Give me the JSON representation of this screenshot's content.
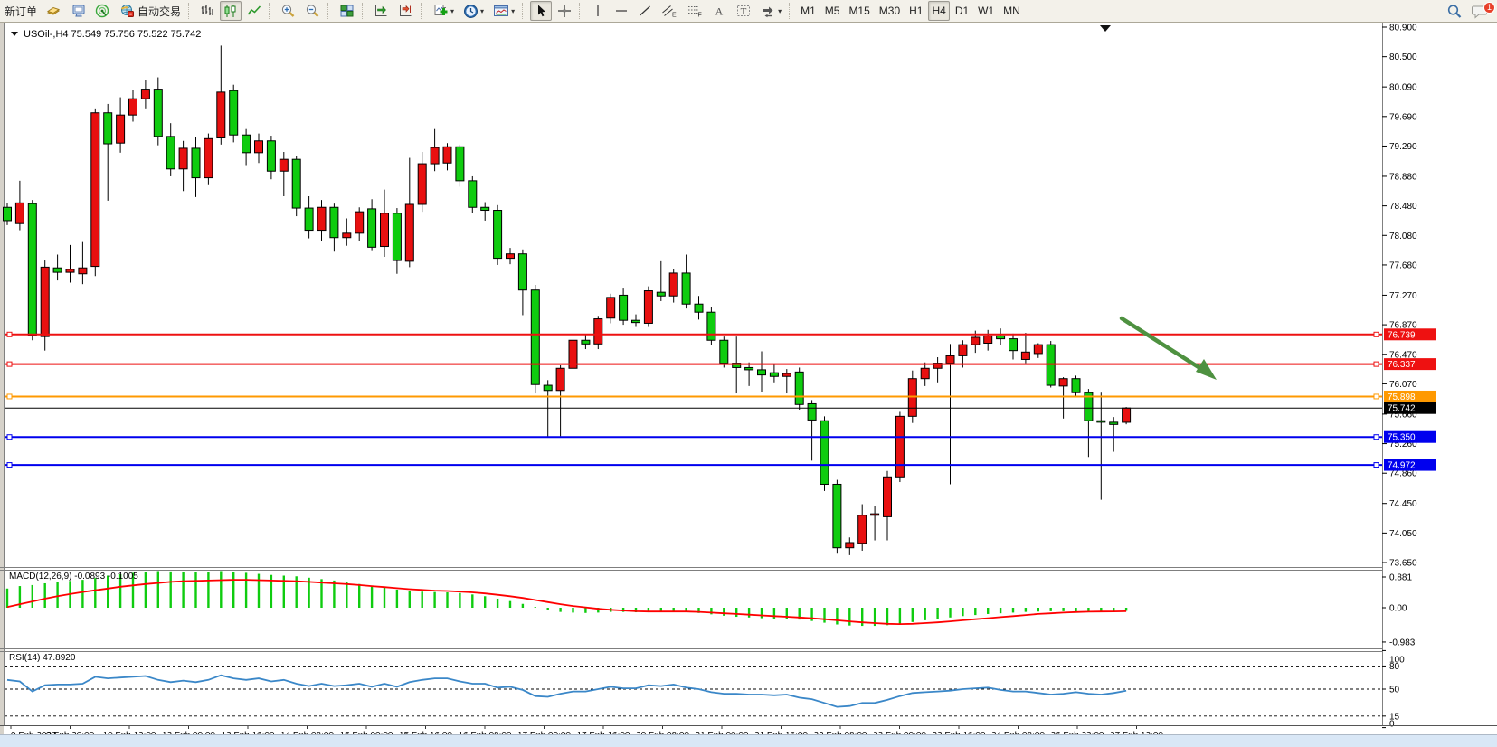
{
  "toolbar": {
    "new_order_label": "新订单",
    "auto_trading_label": "自动交易",
    "groups": [
      {
        "items": [
          {
            "name": "new-order-button",
            "label": "新订单"
          },
          {
            "name": "market-watch-button",
            "icon": "folder-gold-icon"
          },
          {
            "name": "data-window-button",
            "icon": "monitor-icon"
          },
          {
            "name": "signal-button",
            "icon": "signal-icon"
          },
          {
            "name": "auto-trading-button",
            "icon": "globe-stop-icon",
            "label": "自动交易"
          }
        ]
      },
      {
        "items": [
          {
            "name": "bar-chart-button",
            "icon": "bar-chart-icon"
          },
          {
            "name": "candlestick-chart-button",
            "icon": "candlestick-icon",
            "active": true
          },
          {
            "name": "line-chart-button",
            "icon": "line-chart-icon"
          }
        ]
      },
      {
        "items": [
          {
            "name": "zoom-in-button",
            "icon": "zoom-in-icon"
          },
          {
            "name": "zoom-out-button",
            "icon": "zoom-out-icon"
          }
        ]
      },
      {
        "items": [
          {
            "name": "tile-windows-button",
            "icon": "tile-windows-icon"
          }
        ]
      },
      {
        "items": [
          {
            "name": "auto-scroll-button",
            "icon": "auto-scroll-icon"
          },
          {
            "name": "chart-shift-button",
            "icon": "chart-shift-icon"
          }
        ]
      },
      {
        "items": [
          {
            "name": "indicators-button",
            "icon": "indicator-add-icon",
            "caret": true
          },
          {
            "name": "periods-button",
            "icon": "clock-icon",
            "caret": true
          },
          {
            "name": "templates-button",
            "icon": "template-icon",
            "caret": true
          }
        ]
      },
      {
        "items": [
          {
            "name": "cursor-button",
            "icon": "cursor-icon",
            "active": true
          },
          {
            "name": "crosshair-button",
            "icon": "crosshair-icon"
          }
        ]
      },
      {
        "items": [
          {
            "name": "vertical-line-button",
            "icon": "vline-icon"
          },
          {
            "name": "horizontal-line-button",
            "icon": "hline-icon"
          },
          {
            "name": "trendline-button",
            "icon": "trendline-icon"
          },
          {
            "name": "channel-button",
            "icon": "channel-icon"
          },
          {
            "name": "fibonacci-button",
            "icon": "fibo-icon"
          },
          {
            "name": "text-button",
            "icon": "text-icon"
          },
          {
            "name": "label-button",
            "icon": "label-icon"
          },
          {
            "name": "shapes-button",
            "icon": "shapes-icon",
            "caret": true
          }
        ]
      },
      {
        "items": [
          {
            "name": "tf-m1-button",
            "label": "M1"
          },
          {
            "name": "tf-m5-button",
            "label": "M5"
          },
          {
            "name": "tf-m15-button",
            "label": "M15"
          },
          {
            "name": "tf-m30-button",
            "label": "M30"
          },
          {
            "name": "tf-h1-button",
            "label": "H1"
          },
          {
            "name": "tf-h4-button",
            "label": "H4",
            "active": true
          },
          {
            "name": "tf-d1-button",
            "label": "D1"
          },
          {
            "name": "tf-w1-button",
            "label": "W1"
          },
          {
            "name": "tf-mn-button",
            "label": "MN"
          }
        ]
      }
    ],
    "timeframes": [
      "M1",
      "M5",
      "M15",
      "M30",
      "H1",
      "H4",
      "D1",
      "W1",
      "MN"
    ],
    "active_timeframe": "H4",
    "icon_glyphs": {
      "text_icon": "A",
      "label_icon": "T",
      "channel_icon_suffix": "E",
      "fibo_icon_suffix": "F"
    },
    "notification_badge": "1"
  },
  "chart": {
    "symbol_label": "USOil-,H4",
    "ohlc_label": "75.549 75.756 75.522 75.742",
    "price_axis": [
      "80.900",
      "80.500",
      "80.090",
      "79.690",
      "79.290",
      "78.880",
      "78.480",
      "78.080",
      "77.680",
      "77.270",
      "76.870",
      "76.470",
      "76.070",
      "75.660",
      "75.260",
      "74.860",
      "74.450",
      "74.050",
      "73.650"
    ],
    "hlines": [
      {
        "name": "resistance-line-1",
        "price": 76.739,
        "label": "76.739",
        "color": "#ee1111"
      },
      {
        "name": "resistance-line-2",
        "price": 76.337,
        "label": "76.337",
        "color": "#ee1111"
      },
      {
        "name": "pivot-line",
        "price": 75.898,
        "label": "75.898",
        "color": "#ff9900"
      },
      {
        "name": "support-line-1",
        "price": 75.35,
        "label": "75.350",
        "color": "#0000ee"
      },
      {
        "name": "support-line-2",
        "price": 74.972,
        "label": "74.972",
        "color": "#0000ee"
      }
    ],
    "bid_line": {
      "price": 75.742,
      "label": "75.742",
      "color": "#000000"
    },
    "time_axis": [
      "9 Feb 2023",
      "9 Feb 20:00",
      "10 Feb 12:00",
      "13 Feb 00:00",
      "13 Feb 16:00",
      "14 Feb 08:00",
      "15 Feb 00:00",
      "15 Feb 16:00",
      "16 Feb 08:00",
      "17 Feb 00:00",
      "17 Feb 16:00",
      "20 Feb 08:00",
      "21 Feb 00:00",
      "21 Feb 16:00",
      "22 Feb 08:00",
      "23 Feb 00:00",
      "23 Feb 16:00",
      "24 Feb 08:00",
      "26 Feb 23:00",
      "27 Feb 12:00"
    ],
    "colors": {
      "up": "#e81010",
      "down": "#0fcc0f",
      "wick": "#000000",
      "arrow": "#4e9140",
      "macd_hist": "#0fcc0f",
      "macd_signal": "#ff0000",
      "rsi_line": "#3a87c8"
    }
  },
  "macd_panel": {
    "label": "MACD(12,26,9)",
    "values": "-0.0893 -0.1005",
    "axis": [
      "0.881",
      "0.00",
      "-0.983"
    ]
  },
  "rsi_panel": {
    "label": "RSI(14)",
    "value": "47.8920",
    "axis": [
      "100",
      "80",
      "50",
      "15",
      "0"
    ],
    "levels": [
      80,
      50,
      15
    ]
  },
  "chart_data": {
    "type": "candlestick",
    "symbol": "USOil",
    "timeframe": "H4",
    "ylim": [
      73.65,
      80.9
    ],
    "ohlc": [
      [
        78.46,
        78.52,
        78.22,
        78.28
      ],
      [
        78.24,
        78.82,
        78.15,
        78.52
      ],
      [
        78.51,
        78.56,
        76.66,
        76.73
      ],
      [
        76.71,
        77.74,
        76.52,
        77.65
      ],
      [
        77.64,
        77.82,
        77.47,
        77.58
      ],
      [
        77.58,
        77.95,
        77.44,
        77.62
      ],
      [
        77.56,
        77.99,
        77.42,
        77.64
      ],
      [
        77.66,
        79.8,
        77.53,
        79.74
      ],
      [
        79.74,
        79.86,
        78.55,
        79.32
      ],
      [
        79.33,
        79.95,
        79.2,
        79.71
      ],
      [
        79.71,
        80.05,
        79.62,
        79.93
      ],
      [
        79.93,
        80.18,
        79.8,
        80.06
      ],
      [
        80.06,
        80.22,
        79.3,
        79.42
      ],
      [
        79.42,
        79.6,
        78.88,
        78.98
      ],
      [
        78.98,
        79.36,
        78.68,
        79.26
      ],
      [
        79.26,
        79.41,
        78.6,
        78.86
      ],
      [
        78.86,
        79.46,
        78.76,
        79.39
      ],
      [
        79.4,
        80.65,
        79.31,
        80.02
      ],
      [
        80.04,
        80.12,
        79.34,
        79.44
      ],
      [
        79.44,
        79.52,
        79.02,
        79.2
      ],
      [
        79.2,
        79.46,
        79.06,
        79.36
      ],
      [
        79.36,
        79.43,
        78.84,
        78.95
      ],
      [
        78.95,
        79.21,
        78.61,
        79.11
      ],
      [
        79.11,
        79.16,
        78.34,
        78.45
      ],
      [
        78.45,
        78.61,
        78.04,
        78.15
      ],
      [
        78.15,
        78.56,
        78.01,
        78.46
      ],
      [
        78.46,
        78.51,
        77.86,
        78.05
      ],
      [
        78.05,
        78.31,
        77.94,
        78.11
      ],
      [
        78.11,
        78.46,
        78.0,
        78.4
      ],
      [
        78.44,
        78.57,
        77.88,
        77.92
      ],
      [
        77.93,
        78.7,
        77.79,
        78.38
      ],
      [
        78.38,
        78.45,
        77.56,
        77.74
      ],
      [
        77.73,
        79.13,
        77.65,
        78.5
      ],
      [
        78.5,
        79.21,
        78.4,
        79.05
      ],
      [
        79.05,
        79.52,
        78.95,
        79.27
      ],
      [
        79.06,
        79.33,
        78.96,
        79.28
      ],
      [
        79.28,
        79.31,
        78.74,
        78.82
      ],
      [
        78.82,
        78.88,
        78.38,
        78.46
      ],
      [
        78.46,
        78.53,
        78.28,
        78.42
      ],
      [
        78.42,
        78.49,
        77.68,
        77.77
      ],
      [
        77.77,
        77.91,
        77.69,
        77.83
      ],
      [
        77.83,
        77.89,
        77.0,
        77.34
      ],
      [
        77.34,
        77.41,
        75.94,
        76.06
      ],
      [
        76.05,
        76.12,
        75.34,
        75.98
      ],
      [
        75.98,
        76.32,
        75.36,
        76.28
      ],
      [
        76.28,
        76.73,
        76.18,
        76.66
      ],
      [
        76.66,
        76.73,
        76.54,
        76.61
      ],
      [
        76.61,
        76.99,
        76.54,
        76.95
      ],
      [
        76.96,
        77.29,
        76.89,
        77.24
      ],
      [
        77.27,
        77.36,
        76.87,
        76.93
      ],
      [
        76.93,
        77.01,
        76.84,
        76.9
      ],
      [
        76.89,
        77.39,
        76.84,
        77.33
      ],
      [
        77.31,
        77.73,
        77.19,
        77.26
      ],
      [
        77.26,
        77.63,
        77.17,
        77.57
      ],
      [
        77.57,
        77.82,
        77.09,
        77.15
      ],
      [
        77.15,
        77.26,
        76.94,
        77.04
      ],
      [
        77.04,
        77.11,
        76.59,
        76.66
      ],
      [
        76.66,
        76.71,
        76.29,
        76.35
      ],
      [
        76.35,
        76.71,
        75.94,
        76.29
      ],
      [
        76.29,
        76.36,
        76.04,
        76.26
      ],
      [
        76.26,
        76.51,
        75.96,
        76.19
      ],
      [
        76.22,
        76.33,
        76.09,
        76.17
      ],
      [
        76.17,
        76.27,
        75.94,
        76.21
      ],
      [
        76.23,
        76.29,
        75.72,
        75.79
      ],
      [
        75.8,
        75.85,
        75.03,
        75.58
      ],
      [
        75.57,
        75.63,
        74.62,
        74.71
      ],
      [
        74.71,
        74.77,
        73.77,
        73.85
      ],
      [
        73.85,
        73.99,
        73.75,
        73.92
      ],
      [
        73.91,
        74.44,
        73.81,
        74.29
      ],
      [
        74.29,
        74.42,
        73.95,
        74.31
      ],
      [
        74.27,
        74.89,
        73.95,
        74.81
      ],
      [
        74.81,
        75.69,
        74.74,
        75.63
      ],
      [
        75.63,
        76.25,
        75.54,
        76.14
      ],
      [
        76.14,
        76.36,
        76.04,
        76.28
      ],
      [
        76.28,
        76.43,
        76.09,
        76.35
      ],
      [
        76.35,
        76.61,
        74.71,
        76.45
      ],
      [
        76.45,
        76.66,
        76.29,
        76.6
      ],
      [
        76.6,
        76.79,
        76.49,
        76.7
      ],
      [
        76.62,
        76.8,
        76.52,
        76.72
      ],
      [
        76.72,
        76.82,
        76.6,
        76.68
      ],
      [
        76.68,
        76.75,
        76.4,
        76.52
      ],
      [
        76.4,
        76.76,
        76.35,
        76.5
      ],
      [
        76.48,
        76.62,
        76.42,
        76.6
      ],
      [
        76.6,
        76.65,
        76.02,
        76.05
      ],
      [
        76.04,
        76.16,
        75.6,
        76.14
      ],
      [
        76.14,
        76.18,
        75.9,
        75.95
      ],
      [
        75.95,
        76.0,
        75.08,
        75.57
      ],
      [
        75.57,
        75.95,
        74.5,
        75.55
      ],
      [
        75.55,
        75.62,
        75.15,
        75.52
      ],
      [
        75.549,
        75.756,
        75.522,
        75.742
      ]
    ],
    "macd_histogram": [
      0.55,
      0.62,
      0.65,
      0.7,
      0.74,
      0.77,
      0.8,
      0.85,
      0.92,
      0.96,
      1.0,
      1.03,
      1.05,
      1.04,
      1.02,
      1.02,
      1.03,
      1.05,
      1.03,
      1.0,
      0.97,
      0.94,
      0.92,
      0.9,
      0.86,
      0.82,
      0.78,
      0.73,
      0.68,
      0.62,
      0.57,
      0.52,
      0.48,
      0.46,
      0.45,
      0.44,
      0.42,
      0.38,
      0.33,
      0.26,
      0.19,
      0.11,
      0.02,
      -0.07,
      -0.12,
      -0.14,
      -0.15,
      -0.14,
      -0.12,
      -0.12,
      -0.13,
      -0.13,
      -0.12,
      -0.11,
      -0.12,
      -0.15,
      -0.19,
      -0.23,
      -0.26,
      -0.28,
      -0.3,
      -0.31,
      -0.32,
      -0.34,
      -0.38,
      -0.43,
      -0.48,
      -0.51,
      -0.52,
      -0.52,
      -0.5,
      -0.46,
      -0.41,
      -0.36,
      -0.32,
      -0.28,
      -0.24,
      -0.21,
      -0.18,
      -0.16,
      -0.14,
      -0.12,
      -0.11,
      -0.1,
      -0.1,
      -0.105,
      -0.1,
      -0.097,
      -0.093,
      -0.0893
    ],
    "macd_signal": [
      0.02,
      0.1,
      0.18,
      0.26,
      0.33,
      0.39,
      0.45,
      0.5,
      0.55,
      0.6,
      0.64,
      0.68,
      0.71,
      0.74,
      0.76,
      0.77,
      0.78,
      0.79,
      0.8,
      0.8,
      0.79,
      0.78,
      0.77,
      0.76,
      0.74,
      0.72,
      0.7,
      0.68,
      0.65,
      0.62,
      0.59,
      0.56,
      0.53,
      0.51,
      0.49,
      0.48,
      0.46,
      0.44,
      0.41,
      0.37,
      0.33,
      0.28,
      0.22,
      0.16,
      0.1,
      0.05,
      0.01,
      -0.03,
      -0.06,
      -0.08,
      -0.1,
      -0.11,
      -0.11,
      -0.11,
      -0.11,
      -0.12,
      -0.14,
      -0.16,
      -0.18,
      -0.2,
      -0.22,
      -0.24,
      -0.26,
      -0.28,
      -0.3,
      -0.33,
      -0.36,
      -0.39,
      -0.42,
      -0.44,
      -0.46,
      -0.47,
      -0.46,
      -0.44,
      -0.42,
      -0.39,
      -0.36,
      -0.33,
      -0.3,
      -0.27,
      -0.24,
      -0.21,
      -0.18,
      -0.16,
      -0.14,
      -0.125,
      -0.115,
      -0.11,
      -0.105,
      -0.1005
    ],
    "rsi": [
      62,
      60,
      47,
      55,
      56,
      56,
      57,
      66,
      64,
      65,
      66,
      67,
      62,
      59,
      61,
      59,
      62,
      68,
      64,
      62,
      64,
      60,
      62,
      57,
      54,
      57,
      54,
      55,
      57,
      53,
      57,
      53,
      59,
      62,
      64,
      64,
      60,
      57,
      57,
      52,
      53,
      49,
      41,
      40,
      44,
      47,
      47,
      50,
      53,
      51,
      51,
      55,
      54,
      56,
      52,
      50,
      46,
      44,
      44,
      43,
      43,
      42,
      43,
      39,
      37,
      32,
      27,
      28,
      32,
      32,
      36,
      41,
      45,
      46,
      47,
      48,
      50,
      51,
      52,
      49,
      47,
      47,
      45,
      43,
      44,
      46,
      44,
      43,
      45,
      47.89
    ],
    "annotations": [
      {
        "type": "arrow",
        "name": "down-trend-arrow",
        "from_price": "(1240,352)",
        "to_price": "(1345,418)",
        "color": "#4e9140"
      }
    ]
  }
}
